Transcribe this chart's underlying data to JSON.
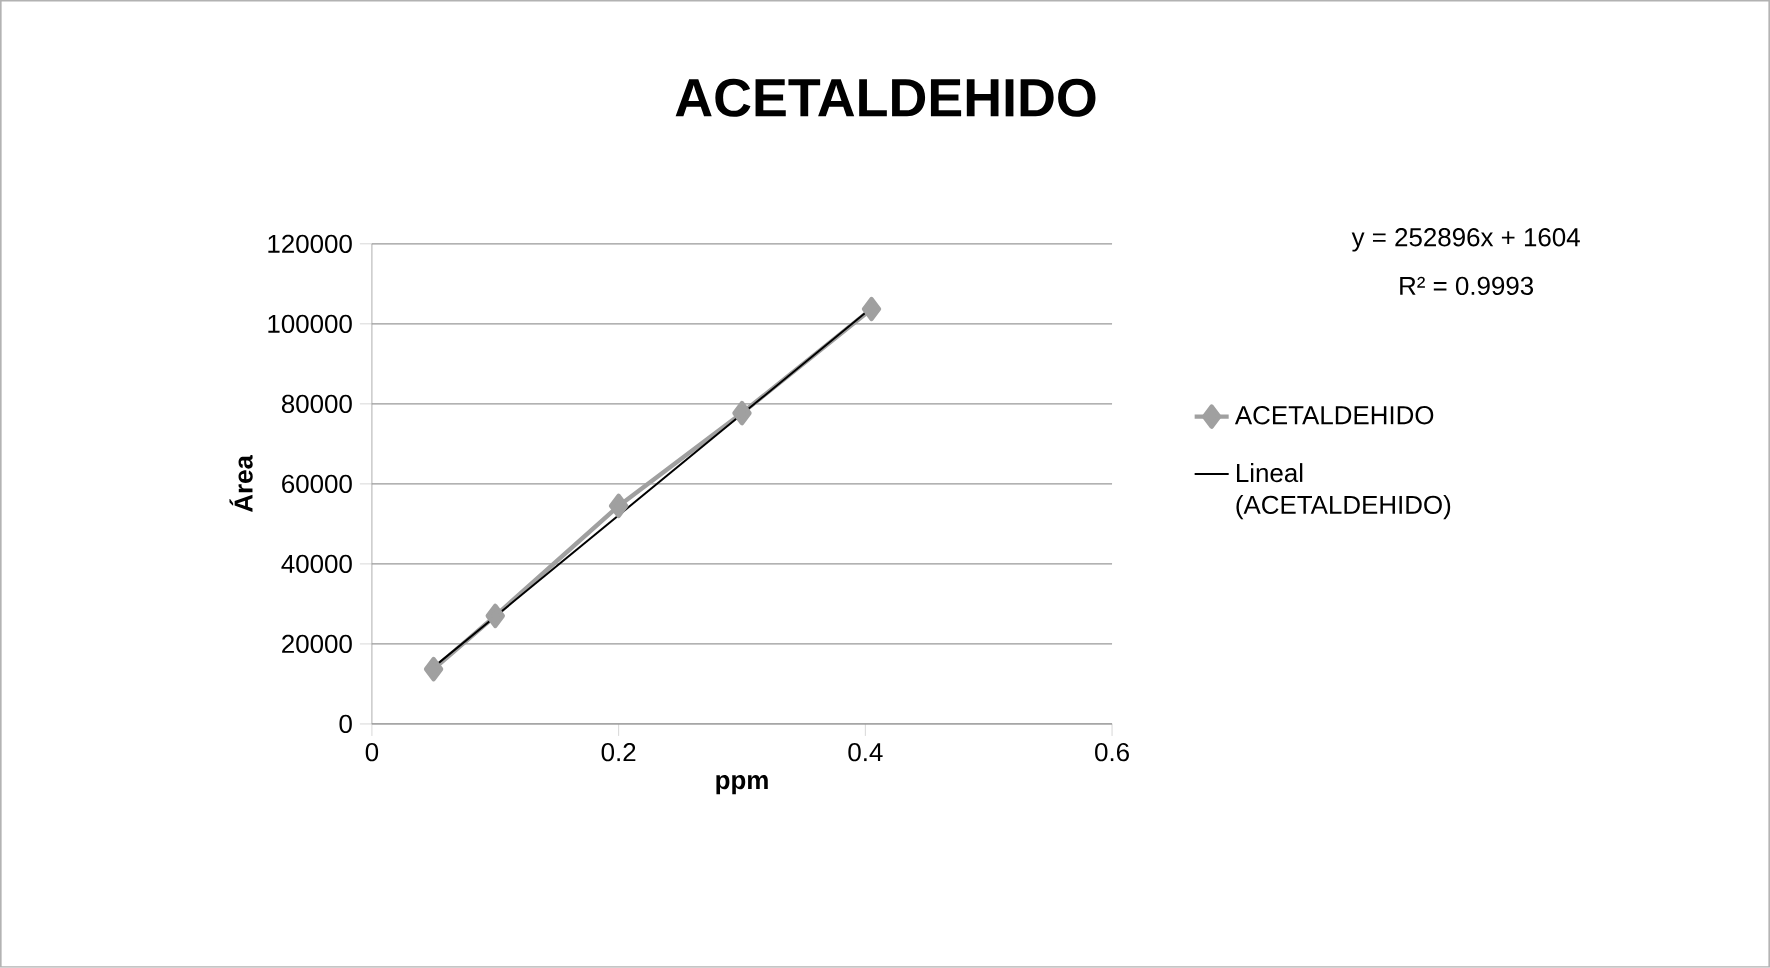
{
  "chart_data": {
    "type": "line",
    "title": "ACETALDEHIDO",
    "xlabel": "ppm",
    "ylabel": "Área",
    "xlim": [
      0,
      0.6
    ],
    "xticks": [
      0,
      0.2,
      0.4,
      0.6
    ],
    "ylim": [
      0,
      120000
    ],
    "yticks": [
      0,
      20000,
      40000,
      60000,
      80000,
      100000,
      120000
    ],
    "grid": "y",
    "legend": "right",
    "line_style": "solid",
    "series": [
      {
        "name": "ACETALDEHIDO",
        "marker": "diamond",
        "color": "#a0a0a0",
        "x": [
          0.05,
          0.1,
          0.2,
          0.3,
          0.405
        ],
        "values": [
          13700,
          27000,
          54500,
          77700,
          103700
        ]
      },
      {
        "name": "Lineal (ACETALDEHIDO)",
        "marker": "none",
        "color": "#000000",
        "x": [
          0.05,
          0.405
        ],
        "values": [
          14200,
          104000
        ]
      }
    ],
    "annotations": [
      "y = 252896x + 1604",
      "R² = 0.9993"
    ]
  }
}
